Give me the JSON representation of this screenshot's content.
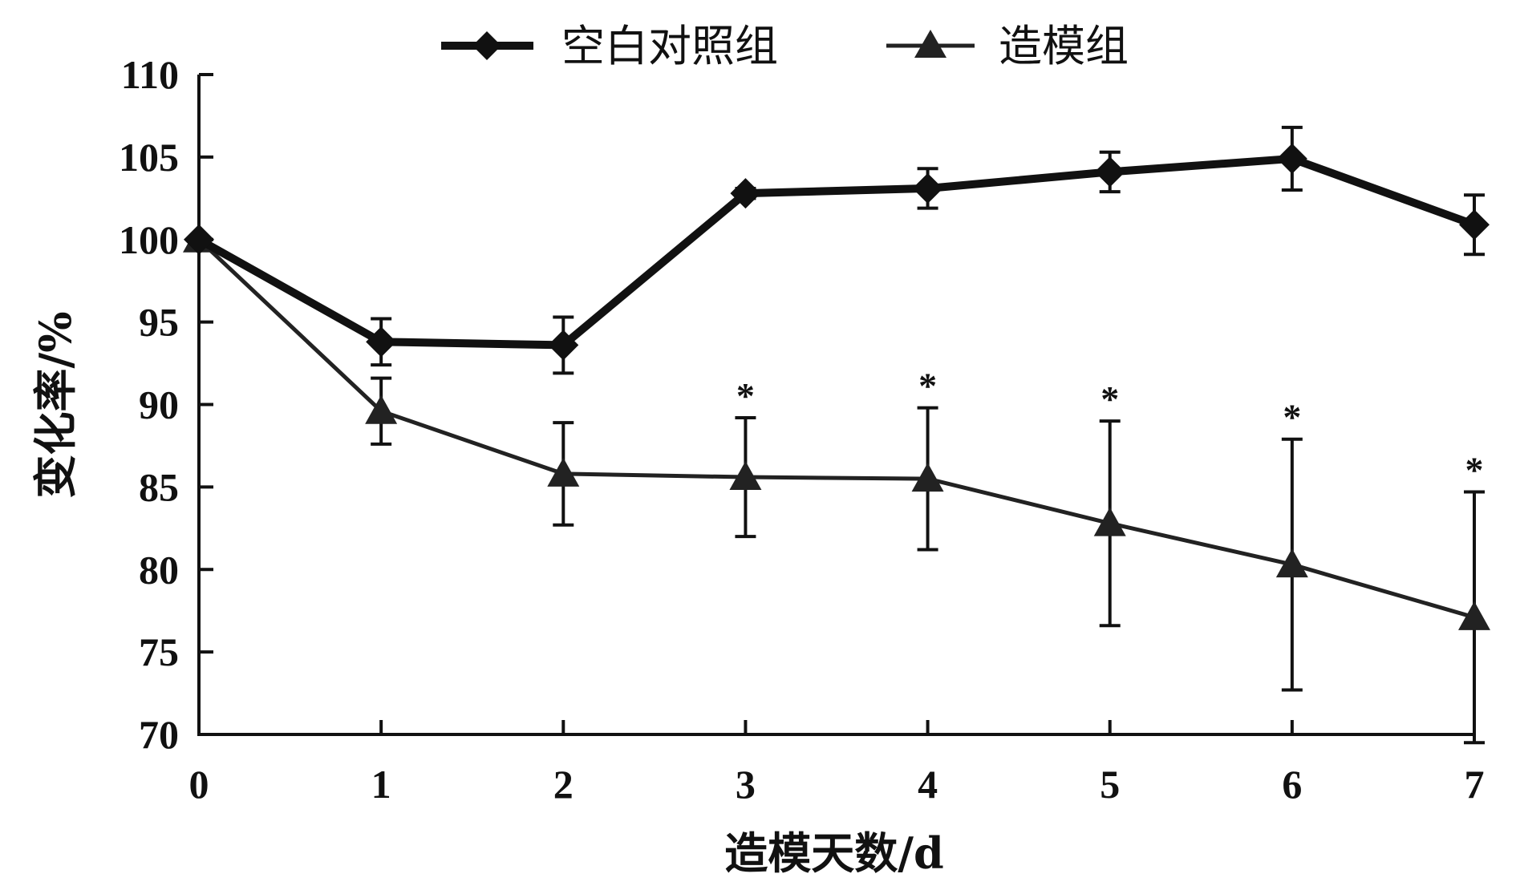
{
  "chart_data": {
    "type": "line",
    "title": "",
    "xlabel": "造模天数/d",
    "ylabel": "变化率/%",
    "x": [
      0,
      1,
      2,
      3,
      4,
      5,
      6,
      7
    ],
    "xticks": [
      "0",
      "1",
      "2",
      "3",
      "4",
      "5",
      "6",
      "7"
    ],
    "ylim": [
      70,
      110
    ],
    "yticks": [
      "70",
      "75",
      "80",
      "85",
      "90",
      "95",
      "100",
      "105",
      "110"
    ],
    "grid": false,
    "legend_position": "top-center",
    "series": [
      {
        "name": "空白对照组",
        "marker": "diamond",
        "style": "thick",
        "color": "#111111",
        "values": [
          100,
          93.8,
          93.6,
          102.8,
          103.1,
          104.1,
          104.9,
          100.9
        ],
        "error": [
          0,
          1.4,
          1.7,
          0.3,
          1.2,
          1.2,
          1.9,
          1.8
        ]
      },
      {
        "name": "造模组",
        "marker": "triangle",
        "style": "thin",
        "color": "#222222",
        "values": [
          100,
          89.6,
          85.8,
          85.6,
          85.5,
          82.8,
          80.3,
          77.1
        ],
        "error": [
          0,
          2.0,
          3.1,
          3.6,
          4.3,
          6.2,
          7.6,
          7.6
        ],
        "significance": [
          "",
          "",
          "",
          "*",
          "*",
          "*",
          "*",
          "*"
        ]
      }
    ]
  }
}
